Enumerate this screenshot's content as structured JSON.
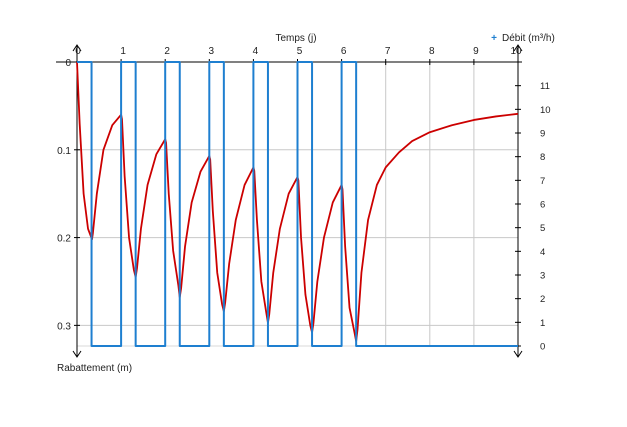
{
  "chart_data": {
    "type": "line",
    "title": "",
    "xlabel": "Temps (j)",
    "ylabel": "Rabattement (m)",
    "y2label": "Débit (m³/h)",
    "y2label_marker": "+",
    "xlim": [
      0,
      10
    ],
    "ylim": [
      0,
      0.32
    ],
    "y_inverted": true,
    "y2lim": [
      0,
      12
    ],
    "x_ticks": [
      "0",
      "1",
      "2",
      "3",
      "4",
      "5",
      "6",
      "7",
      "8",
      "9",
      "10"
    ],
    "y_ticks": [
      "0",
      "0.1",
      "0.2",
      "0.3"
    ],
    "y2_ticks": [
      "0",
      "1",
      "2",
      "3",
      "4",
      "5",
      "6",
      "7",
      "8",
      "9",
      "10",
      "11"
    ],
    "grid": true,
    "series": [
      {
        "axis": "y",
        "color": "#cc0000",
        "x": [
          0,
          0.06,
          0.15,
          0.25,
          0.34,
          0.36,
          0.45,
          0.6,
          0.8,
          1.0,
          1.02,
          1.08,
          1.18,
          1.29,
          1.33,
          1.36,
          1.45,
          1.6,
          1.8,
          2.0,
          2.02,
          2.08,
          2.18,
          2.3,
          2.33,
          2.36,
          2.45,
          2.6,
          2.8,
          3.0,
          3.02,
          3.08,
          3.18,
          3.29,
          3.33,
          3.36,
          3.45,
          3.6,
          3.8,
          4.0,
          4.02,
          4.08,
          4.18,
          4.3,
          4.33,
          4.36,
          4.45,
          4.6,
          4.8,
          5.0,
          5.02,
          5.08,
          5.18,
          5.29,
          5.33,
          5.36,
          5.45,
          5.6,
          5.8,
          6.0,
          6.02,
          6.08,
          6.18,
          6.3,
          6.33,
          6.36,
          6.45,
          6.6,
          6.8,
          7.0,
          7.3,
          7.6,
          8.0,
          8.5,
          9.0,
          9.5,
          10.0
        ],
        "y": [
          0,
          0.07,
          0.15,
          0.19,
          0.202,
          0.195,
          0.15,
          0.1,
          0.072,
          0.06,
          0.065,
          0.13,
          0.2,
          0.237,
          0.245,
          0.235,
          0.19,
          0.14,
          0.105,
          0.088,
          0.092,
          0.15,
          0.215,
          0.255,
          0.268,
          0.258,
          0.21,
          0.16,
          0.125,
          0.107,
          0.111,
          0.17,
          0.24,
          0.276,
          0.284,
          0.274,
          0.23,
          0.18,
          0.14,
          0.12,
          0.124,
          0.18,
          0.25,
          0.288,
          0.297,
          0.287,
          0.24,
          0.19,
          0.15,
          0.131,
          0.135,
          0.2,
          0.265,
          0.3,
          0.308,
          0.298,
          0.25,
          0.2,
          0.16,
          0.14,
          0.145,
          0.21,
          0.28,
          0.31,
          0.318,
          0.305,
          0.24,
          0.18,
          0.14,
          0.12,
          0.103,
          0.09,
          0.08,
          0.072,
          0.066,
          0.062,
          0.059
        ]
      },
      {
        "axis": "y2",
        "color": "#1e7fd0",
        "x": [
          0,
          0.33,
          0.33,
          1.0,
          1.0,
          1.33,
          1.33,
          2.0,
          2.0,
          2.33,
          2.33,
          3.0,
          3.0,
          3.33,
          3.33,
          4.0,
          4.0,
          4.33,
          4.33,
          5.0,
          5.0,
          5.33,
          5.33,
          6.0,
          6.0,
          6.33,
          6.33,
          10.0
        ],
        "y": [
          12,
          12,
          0,
          0,
          12,
          12,
          0,
          0,
          12,
          12,
          0,
          0,
          12,
          12,
          0,
          0,
          12,
          12,
          0,
          0,
          12,
          12,
          0,
          0,
          12,
          12,
          0,
          0
        ]
      }
    ]
  }
}
